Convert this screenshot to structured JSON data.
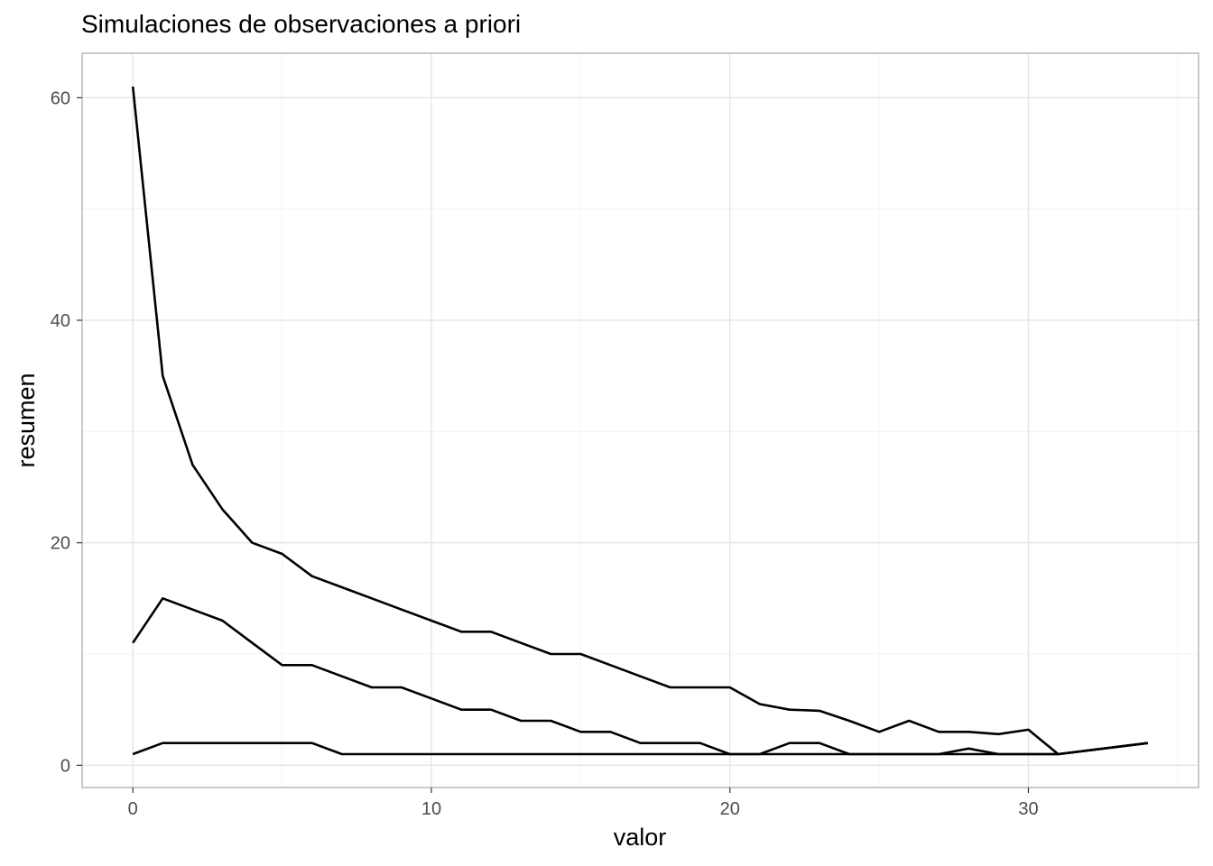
{
  "chart_data": {
    "type": "line",
    "title": "Simulaciones de observaciones a priori",
    "xlabel": "valor",
    "ylabel": "resumen",
    "xlim": [
      -1.7,
      35.7
    ],
    "ylim": [
      -2,
      64
    ],
    "xticks": [
      0,
      10,
      20,
      30
    ],
    "yticks": [
      0,
      20,
      40,
      60
    ],
    "grid": true,
    "legend": "none",
    "line_color": "#000000",
    "series": [
      {
        "x": [
          0,
          1,
          2,
          3,
          4,
          5,
          6,
          7,
          8,
          9,
          10,
          11,
          12,
          13,
          14,
          15,
          16,
          17,
          18,
          19,
          20,
          21,
          22,
          23,
          24,
          25,
          26,
          27,
          28,
          29,
          30,
          31,
          34
        ],
        "values": [
          61,
          35,
          27,
          23,
          20,
          19,
          17,
          16,
          15,
          14,
          13,
          12,
          12,
          11,
          10,
          10,
          9,
          8,
          7,
          7,
          7,
          5.5,
          5,
          4.9,
          4,
          3,
          4,
          3,
          3,
          2.8,
          3.2,
          1,
          2
        ]
      },
      {
        "x": [
          0,
          1,
          2,
          3,
          4,
          5,
          6,
          7,
          8,
          9,
          10,
          11,
          12,
          13,
          14,
          15,
          16,
          17,
          18,
          19,
          20,
          21,
          22,
          23,
          24,
          25,
          26,
          27,
          28,
          29,
          30,
          31,
          34
        ],
        "values": [
          11,
          15,
          14,
          13,
          11,
          9,
          9,
          8,
          7,
          7,
          6,
          5,
          5,
          4,
          4,
          3,
          3,
          2,
          2,
          2,
          1,
          1,
          2,
          2,
          1,
          1,
          1,
          1,
          1.5,
          1,
          1,
          1,
          2
        ]
      },
      {
        "x": [
          0,
          1,
          2,
          3,
          4,
          5,
          6,
          7,
          8,
          9,
          10,
          11,
          12,
          13,
          14,
          15,
          16,
          17,
          18,
          19,
          20,
          21,
          22,
          23,
          24,
          25,
          26,
          27,
          28,
          29,
          30,
          31,
          34
        ],
        "values": [
          1,
          2,
          2,
          2,
          2,
          2,
          2,
          1,
          1,
          1,
          1,
          1,
          1,
          1,
          1,
          1,
          1,
          1,
          1,
          1,
          1,
          1,
          1,
          1,
          1,
          1,
          1,
          1,
          1,
          1,
          1,
          1,
          2
        ]
      }
    ]
  }
}
